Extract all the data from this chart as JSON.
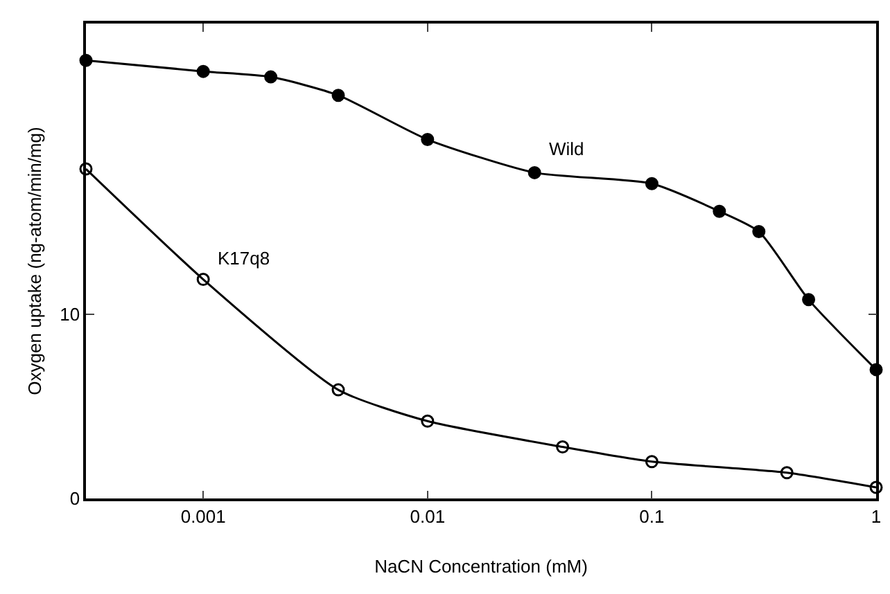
{
  "chart_data": {
    "type": "line",
    "xlabel": "NaCN Concentration (mM)",
    "ylabel": "Oxygen uptake (ng-atom/min/mg)",
    "log": "x",
    "xlim": [
      0.0003,
      1
    ],
    "xticks": [
      0.001,
      0.01,
      0.1,
      1
    ],
    "ylim": [
      0,
      25.8
    ],
    "yticks": [
      0,
      10
    ],
    "legend": false,
    "series": [
      {
        "name": "Wild",
        "color": "#000000",
        "marker": "circle",
        "x": [
          0.0003,
          0.001,
          0.002,
          0.004,
          0.01,
          0.03,
          0.1,
          0.2,
          0.3,
          0.5,
          1
        ],
        "values": [
          23.8,
          23.2,
          22.9,
          21.9,
          19.5,
          17.7,
          17.1,
          15.6,
          14.5,
          10.8,
          7.0
        ]
      },
      {
        "name": "K17q8",
        "color": "#000000",
        "marker": "circle-open",
        "x": [
          0.0003,
          0.001,
          0.004,
          0.01,
          0.04,
          0.1,
          0.4,
          1
        ],
        "values": [
          17.9,
          11.9,
          5.9,
          4.2,
          2.8,
          2.0,
          1.4,
          0.6
        ]
      }
    ]
  }
}
